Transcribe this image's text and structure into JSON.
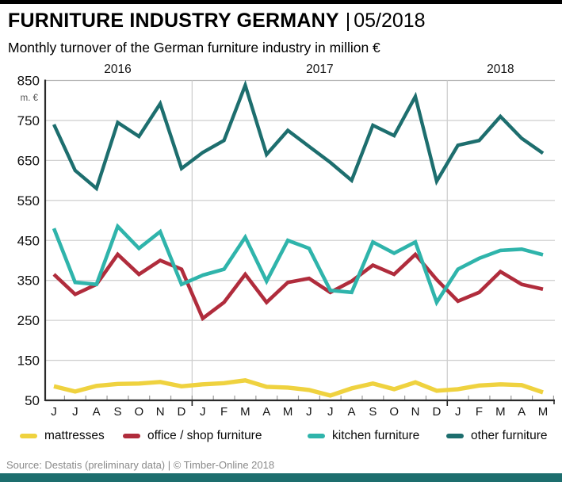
{
  "header": {
    "separator": "|"
  },
  "source": "Source: Destatis (preliminary data) | © Timber-Online 2018",
  "chart_data": {
    "type": "line",
    "title": "FURNITURE INDUSTRY GERMANY",
    "period": "05/2018",
    "subtitle": "Monthly turnover of the German furniture industry in million €",
    "unit_label": "m. €",
    "x_labels": [
      "J",
      "J",
      "A",
      "S",
      "O",
      "N",
      "D",
      "J",
      "F",
      "M",
      "A",
      "M",
      "J",
      "J",
      "A",
      "S",
      "O",
      "N",
      "D",
      "J",
      "F",
      "M",
      "A",
      "M"
    ],
    "years": [
      "2016",
      "2017",
      "2018"
    ],
    "y_ticks": [
      850,
      750,
      650,
      550,
      450,
      350,
      250,
      150,
      50
    ],
    "ylim": [
      50,
      850
    ],
    "grid": true,
    "legend_position": "bottom",
    "series": [
      {
        "name": "mattresses",
        "color": "#EFD23F",
        "values": [
          85,
          72,
          86,
          91,
          92,
          96,
          85,
          90,
          93,
          100,
          84,
          82,
          76,
          62,
          80,
          92,
          78,
          95,
          74,
          78,
          87,
          90,
          88,
          70
        ]
      },
      {
        "name": "office / shop furniture",
        "color": "#B02C3C",
        "values": [
          365,
          315,
          340,
          415,
          365,
          400,
          378,
          255,
          295,
          365,
          295,
          345,
          355,
          320,
          348,
          388,
          365,
          415,
          352,
          298,
          320,
          372,
          340,
          328
        ]
      },
      {
        "name": "kitchen furniture",
        "color": "#2FB4AB",
        "values": [
          480,
          345,
          340,
          485,
          430,
          472,
          340,
          363,
          378,
          458,
          348,
          450,
          430,
          325,
          320,
          446,
          418,
          446,
          295,
          378,
          405,
          425,
          428,
          414
        ]
      },
      {
        "name": "other furniture",
        "color": "#1D6E6E",
        "values": [
          740,
          625,
          580,
          745,
          710,
          792,
          630,
          670,
          700,
          838,
          665,
          725,
          685,
          645,
          600,
          738,
          712,
          810,
          598,
          688,
          700,
          760,
          705,
          668
        ]
      }
    ]
  }
}
